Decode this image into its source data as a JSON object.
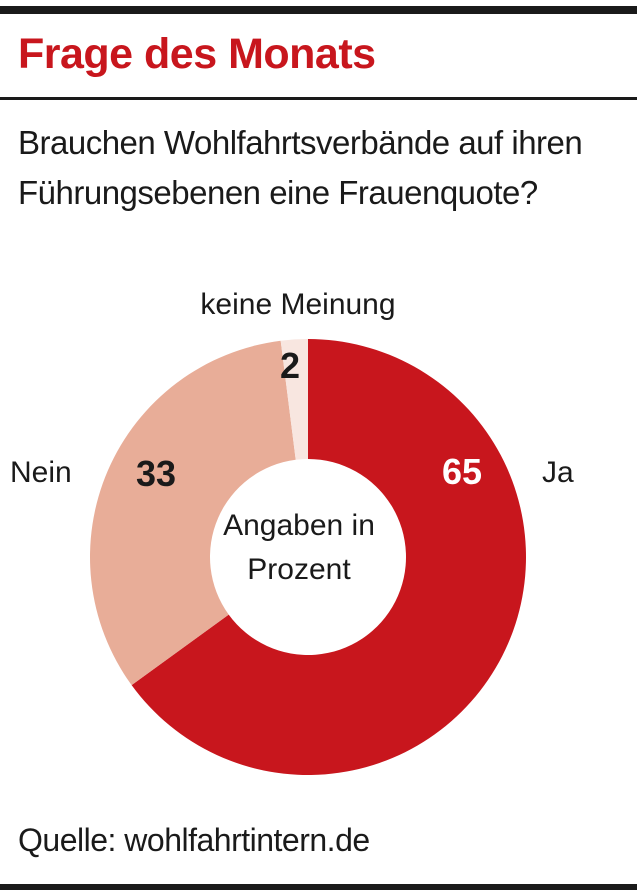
{
  "header": {
    "title": "Frage des Monats"
  },
  "question": "Brauchen Wohlfahrtsverbände auf ihren Führungsebenen eine Frauenquote?",
  "source": "Quelle: wohlfahrtintern.de",
  "colors": {
    "accent": "#c8161d",
    "ja": "#c8161d",
    "nein": "#e8ad98",
    "keine_meinung": "#f8e6e0"
  },
  "chart_data": {
    "type": "pie",
    "subtype": "donut",
    "center_label": [
      "Angaben in",
      "Prozent"
    ],
    "unit": "Prozent",
    "slices": [
      {
        "label": "Ja",
        "value": 65,
        "value_label": "65",
        "color": "#c8161d",
        "value_color": "#ffffff"
      },
      {
        "label": "Nein",
        "value": 33,
        "value_label": "33",
        "color": "#e8ad98",
        "value_color": "#1a1a1a"
      },
      {
        "label": "keine Meinung",
        "value": 2,
        "value_label": "2",
        "color": "#f8e6e0",
        "value_color": "#1a1a1a"
      }
    ]
  }
}
